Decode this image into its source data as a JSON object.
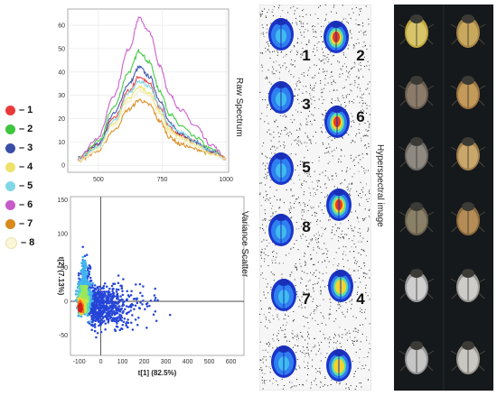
{
  "legend": [
    {
      "label": "– 1",
      "color": "#e83a3a"
    },
    {
      "label": "– 2",
      "color": "#3ec63e"
    },
    {
      "label": "– 3",
      "color": "#3a4ea8"
    },
    {
      "label": "– 4",
      "color": "#ede36a"
    },
    {
      "label": "– 5",
      "color": "#7fd8e6"
    },
    {
      "label": "– 6",
      "color": "#c85ac8"
    },
    {
      "label": "– 7",
      "color": "#d98a1c"
    },
    {
      "label": "– 8",
      "color": "#fbf7d8"
    }
  ],
  "labels": {
    "raw_spectrum": "Raw Spectrum",
    "variance_scatter": "Variance Scatter",
    "hyperspectral": "Hyperspectral image"
  },
  "chart_data": [
    {
      "type": "line",
      "xlim": [
        380,
        1010
      ],
      "ylim": [
        -3,
        67
      ],
      "xticks": [
        "500",
        "750",
        "1000"
      ],
      "yticks": [
        "0",
        "10",
        "20",
        "30",
        "40",
        "50",
        "60"
      ],
      "series": [
        {
          "color": "#e83a3a",
          "x": [
            420,
            500,
            560,
            620,
            660,
            700,
            740,
            780,
            820,
            880,
            940,
            1000
          ],
          "y": [
            3,
            9,
            20,
            32,
            38,
            35,
            25,
            16,
            13,
            10,
            6,
            3
          ]
        },
        {
          "color": "#3ec63e",
          "x": [
            420,
            500,
            560,
            620,
            660,
            700,
            740,
            780,
            820,
            880,
            940,
            1000
          ],
          "y": [
            3,
            10,
            25,
            40,
            49,
            44,
            32,
            22,
            17,
            12,
            7,
            3
          ]
        },
        {
          "color": "#3a4ea8",
          "x": [
            420,
            500,
            560,
            620,
            660,
            700,
            740,
            780,
            820,
            880,
            940,
            1000
          ],
          "y": [
            3,
            9,
            22,
            35,
            42,
            38,
            28,
            18,
            14,
            10,
            6,
            3
          ]
        },
        {
          "color": "#ede36a",
          "x": [
            420,
            500,
            560,
            620,
            660,
            700,
            740,
            780,
            820,
            880,
            940,
            1000
          ],
          "y": [
            3,
            8,
            18,
            29,
            34,
            31,
            23,
            15,
            12,
            9,
            5,
            3
          ]
        },
        {
          "color": "#7fd8e6",
          "x": [
            420,
            500,
            560,
            620,
            660,
            700,
            740,
            780,
            820,
            880,
            940,
            1000
          ],
          "y": [
            3,
            8,
            19,
            31,
            36,
            34,
            25,
            17,
            14,
            10,
            6,
            3
          ]
        },
        {
          "color": "#c85ac8",
          "x": [
            420,
            500,
            560,
            620,
            660,
            700,
            740,
            780,
            820,
            880,
            940,
            1000
          ],
          "y": [
            3,
            12,
            30,
            50,
            63,
            57,
            43,
            30,
            24,
            17,
            9,
            3
          ]
        },
        {
          "color": "#d98a1c",
          "x": [
            420,
            500,
            560,
            620,
            660,
            700,
            740,
            780,
            820,
            880,
            940,
            1000
          ],
          "y": [
            2,
            6,
            15,
            24,
            28,
            26,
            19,
            12,
            9,
            7,
            5,
            3
          ]
        },
        {
          "color": "#f3ecc0",
          "x": [
            420,
            500,
            560,
            620,
            660,
            700,
            740,
            780,
            820,
            880,
            940,
            1000
          ],
          "y": [
            2,
            7,
            17,
            27,
            32,
            30,
            22,
            14,
            11,
            8,
            5,
            3
          ]
        }
      ]
    },
    {
      "type": "scatter",
      "xlim": [
        -140,
        660
      ],
      "ylim": [
        -80,
        155
      ],
      "xticks": [
        "-100",
        "0",
        "100",
        "200",
        "300",
        "400",
        "500",
        "600"
      ],
      "yticks": [
        "-50",
        "0",
        "50",
        "100",
        "150"
      ],
      "xlabel": "t[1] (82.5%)",
      "ylabel": "t[2] (7.13%)"
    }
  ],
  "insect_numbers": [
    "1",
    "2",
    "3",
    "6",
    "5",
    "8",
    "7",
    "4"
  ]
}
